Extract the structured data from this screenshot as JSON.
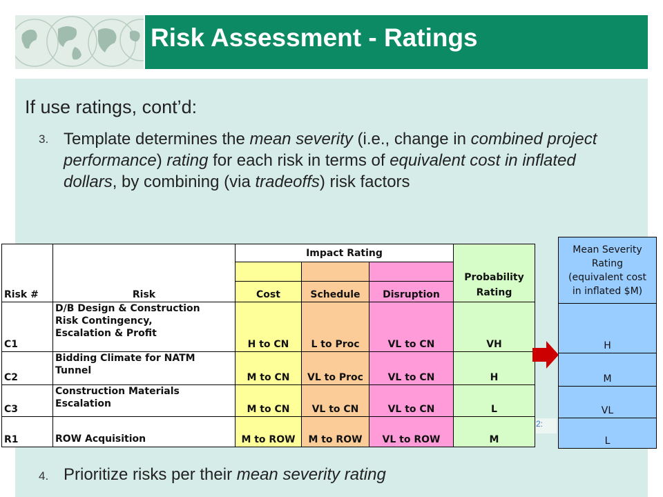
{
  "slide": {
    "title": "Risk Assessment - Ratings",
    "heading": "If use ratings, cont’d:",
    "points": [
      {
        "number": "3.",
        "segments": [
          {
            "text": "Template determines the ",
            "italic": false
          },
          {
            "text": "mean severity",
            "italic": true
          },
          {
            "text": " (i.e., change in ",
            "italic": false
          },
          {
            "text": "combined project performance",
            "italic": true
          },
          {
            "text": ") ",
            "italic": false
          },
          {
            "text": "rating",
            "italic": true
          },
          {
            "text": " for each risk in terms of ",
            "italic": false
          },
          {
            "text": "equivalent cost in inflated dollars",
            "italic": true
          },
          {
            "text": ", by combining (via ",
            "italic": false
          },
          {
            "text": "tradeoffs",
            "italic": true
          },
          {
            "text": ") risk factors",
            "italic": false
          }
        ]
      },
      {
        "number": "4.",
        "segments": [
          {
            "text": "Prioritize risks per their ",
            "italic": false
          },
          {
            "text": "mean severity rating",
            "italic": true
          }
        ]
      }
    ]
  },
  "table": {
    "impact_header": "Impact Rating",
    "headers": {
      "risk_num": "Risk #",
      "risk": "Risk",
      "cost": "Cost",
      "schedule": "Schedule",
      "disruption": "Disruption",
      "probability_line1": "Probability",
      "probability_line2": "Rating"
    },
    "rows": [
      {
        "id": "C1",
        "risk_lines": [
          "D/B Design & Construction",
          "Risk Contingency,",
          "Escalation & Profit"
        ],
        "cost": "H to CN",
        "schedule": "L to Proc",
        "disruption": "VL to CN",
        "probability": "VH"
      },
      {
        "id": "C2",
        "risk_lines": [
          "Bidding Climate for NATM",
          "Tunnel"
        ],
        "cost": "M to CN",
        "schedule": "VL to Proc",
        "disruption": "VL to CN",
        "probability": "H"
      },
      {
        "id": "C3",
        "risk_lines": [
          "Construction Materials",
          "Escalation"
        ],
        "cost": "M to CN",
        "schedule": "VL to CN",
        "disruption": "VL to CN",
        "probability": "L"
      },
      {
        "id": "R1",
        "risk_lines": [
          "ROW Acquisition"
        ],
        "cost": "M to ROW",
        "schedule": "M to ROW",
        "disruption": "VL to ROW",
        "probability": "M"
      }
    ]
  },
  "severity": {
    "header_lines": [
      "Mean Severity",
      "Rating",
      "(equivalent cost",
      "in inflated $M)"
    ],
    "values": [
      "H",
      "M",
      "VL",
      "L"
    ]
  },
  "marker_text": "2:",
  "colors": {
    "header_green": "#0b8a63",
    "content_bg": "#d6ece8",
    "cost": "#ffff9a",
    "schedule": "#fbcc98",
    "disruption": "#ff9bd8",
    "probability": "#d6fcc8",
    "severity": "#99ccff",
    "arrow": "#cc0000"
  },
  "icons": {
    "logo": "globe-logo-icon",
    "arrow": "right-arrow-icon"
  }
}
